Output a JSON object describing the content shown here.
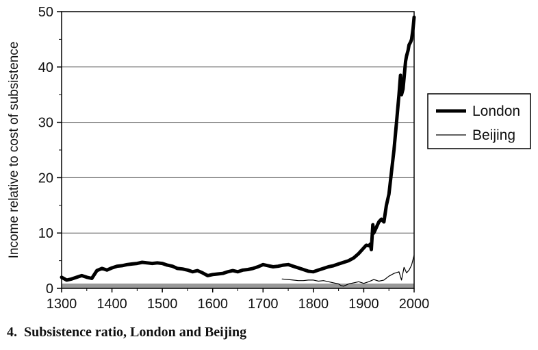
{
  "caption": {
    "number": "4.",
    "text": "Subsistence ratio, London and Beijing"
  },
  "chart_data": {
    "type": "line",
    "title": "",
    "xlabel": "",
    "ylabel": "Income relative to cost of subsistence",
    "xlim": [
      1300,
      2000
    ],
    "ylim": [
      0,
      50
    ],
    "x_ticks": [
      "1300",
      "1400",
      "1500",
      "1600",
      "1700",
      "1800",
      "1900",
      "2000"
    ],
    "y_ticks": [
      "0",
      "10",
      "20",
      "30",
      "40",
      "50"
    ],
    "grid": "horizontal",
    "legend_position": "right",
    "colors": {
      "line": "#000000",
      "baseline_band": "#999999"
    },
    "series": [
      {
        "name": "London",
        "x": [
          1300,
          1310,
          1320,
          1330,
          1340,
          1350,
          1360,
          1370,
          1380,
          1390,
          1400,
          1410,
          1420,
          1430,
          1440,
          1450,
          1460,
          1470,
          1480,
          1490,
          1500,
          1510,
          1520,
          1530,
          1540,
          1550,
          1560,
          1570,
          1580,
          1590,
          1600,
          1610,
          1620,
          1630,
          1640,
          1650,
          1660,
          1670,
          1680,
          1690,
          1700,
          1710,
          1720,
          1730,
          1740,
          1750,
          1760,
          1770,
          1780,
          1790,
          1800,
          1810,
          1820,
          1830,
          1840,
          1850,
          1860,
          1870,
          1880,
          1890,
          1900,
          1905,
          1910,
          1913,
          1915,
          1918,
          1920,
          1925,
          1930,
          1935,
          1940,
          1945,
          1950,
          1955,
          1960,
          1965,
          1970,
          1973,
          1975,
          1978,
          1980,
          1983,
          1985,
          1988,
          1990,
          1993,
          1995,
          1998,
          2000
        ],
        "y": [
          2.0,
          1.5,
          1.7,
          2.0,
          2.3,
          2.0,
          1.8,
          3.2,
          3.6,
          3.3,
          3.7,
          4.0,
          4.1,
          4.3,
          4.4,
          4.5,
          4.7,
          4.6,
          4.5,
          4.6,
          4.5,
          4.2,
          4.0,
          3.6,
          3.5,
          3.3,
          3.0,
          3.2,
          2.8,
          2.3,
          2.5,
          2.6,
          2.7,
          3.0,
          3.2,
          3.0,
          3.3,
          3.4,
          3.6,
          3.9,
          4.3,
          4.1,
          3.9,
          4.0,
          4.2,
          4.3,
          4.0,
          3.7,
          3.4,
          3.1,
          3.0,
          3.3,
          3.6,
          3.9,
          4.1,
          4.4,
          4.7,
          5.0,
          5.5,
          6.3,
          7.3,
          7.8,
          7.7,
          8.0,
          7.0,
          11.5,
          10.0,
          11.0,
          12.0,
          12.5,
          12.0,
          15.0,
          17.0,
          21.0,
          25.0,
          30.0,
          35.0,
          38.5,
          35.0,
          36.0,
          38.0,
          41.0,
          42.0,
          43.0,
          44.0,
          44.5,
          45.0,
          47.0,
          49.0
        ]
      },
      {
        "name": "Beijing",
        "x": [
          1738,
          1750,
          1760,
          1770,
          1780,
          1790,
          1800,
          1810,
          1820,
          1830,
          1840,
          1850,
          1855,
          1860,
          1870,
          1880,
          1890,
          1900,
          1910,
          1920,
          1930,
          1940,
          1950,
          1960,
          1970,
          1975,
          1980,
          1985,
          1990,
          1995,
          2000
        ],
        "y": [
          1.7,
          1.6,
          1.5,
          1.4,
          1.4,
          1.5,
          1.5,
          1.3,
          1.4,
          1.2,
          1.0,
          0.8,
          0.5,
          0.4,
          0.8,
          1.0,
          1.2,
          0.9,
          1.2,
          1.6,
          1.3,
          1.5,
          2.2,
          2.7,
          3.0,
          1.5,
          3.8,
          2.8,
          3.3,
          4.2,
          6.0
        ]
      }
    ]
  }
}
